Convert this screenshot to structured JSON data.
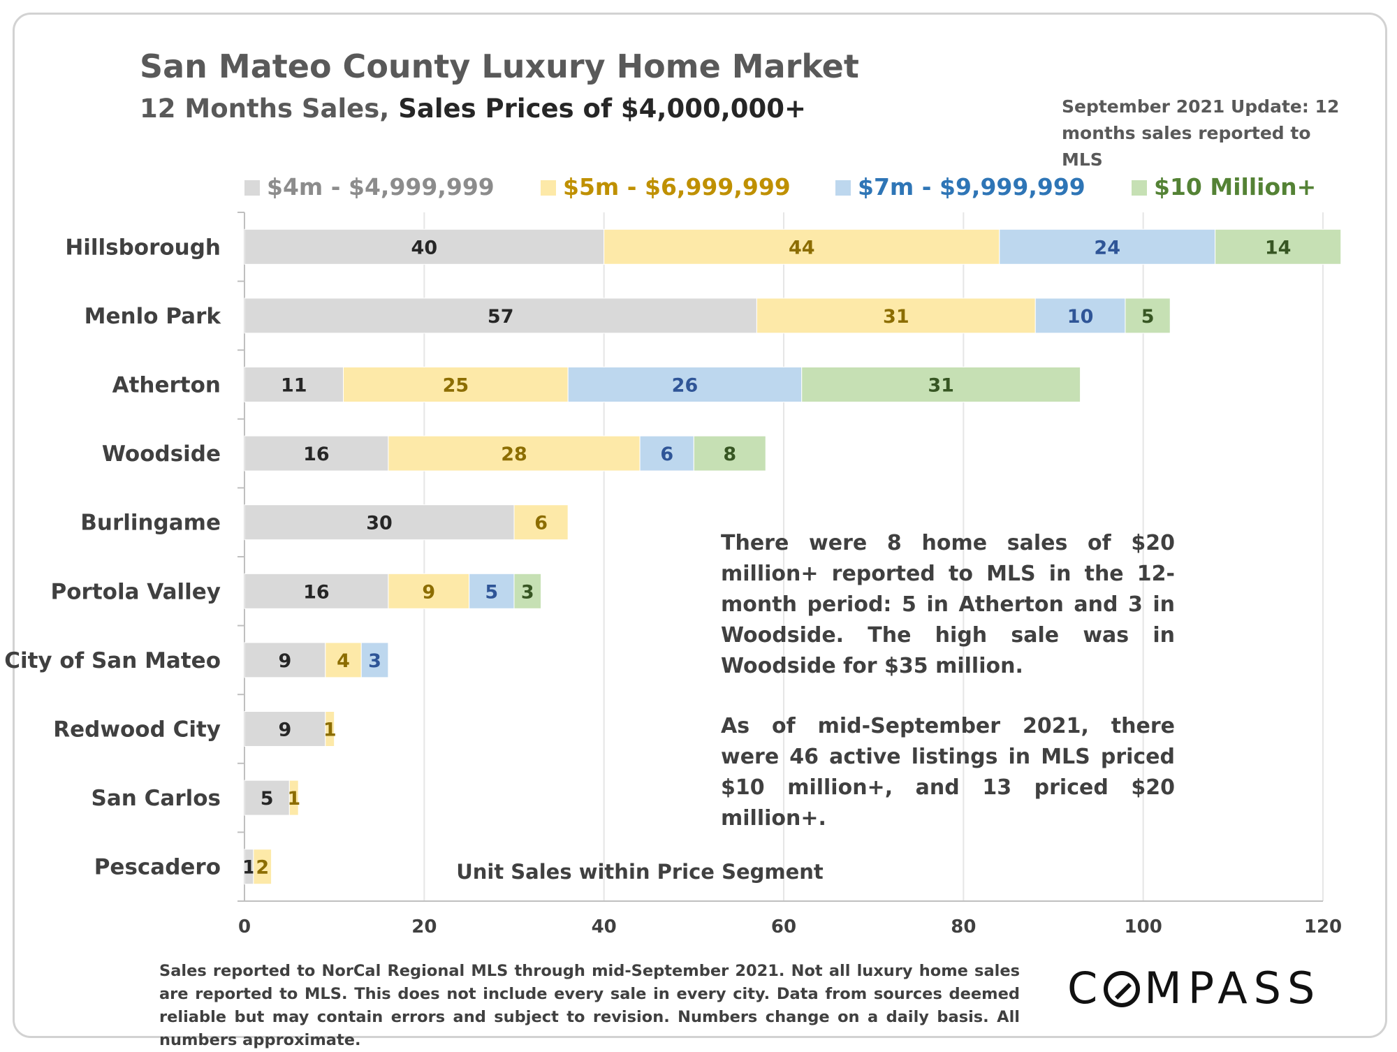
{
  "header": {
    "title": "San Mateo County Luxury Home Market",
    "subtitle_part1": "12 Months Sales, ",
    "subtitle_part2": "Sales Prices of $4,000,000+",
    "update_note": "September 2021 Update: 12 months sales reported to MLS"
  },
  "colors": {
    "seg1": "#d9d9d9",
    "seg2": "#fde9a8",
    "seg3": "#bdd7ee",
    "seg4": "#c6e0b4",
    "label1": "#262626",
    "label2": "#8c6d00",
    "label3": "#2f5597",
    "label4": "#375623",
    "legend1": "#8c8c8c",
    "legend2": "#bf9000",
    "legend3": "#2e75b6",
    "legend4": "#548235"
  },
  "chart_data": {
    "type": "bar",
    "orientation": "horizontal",
    "stacked": true,
    "categories": [
      "Hillsborough",
      "Menlo Park",
      "Atherton",
      "Woodside",
      "Burlingame",
      "Portola Valley",
      "City of San Mateo",
      "Redwood City",
      "San Carlos",
      "Pescadero"
    ],
    "series": [
      {
        "name": "$4m - $4,999,999",
        "values": [
          40,
          57,
          11,
          16,
          30,
          16,
          9,
          9,
          5,
          1
        ]
      },
      {
        "name": "$5m - $6,999,999",
        "values": [
          44,
          31,
          25,
          28,
          6,
          9,
          4,
          1,
          1,
          2
        ]
      },
      {
        "name": "$7m - $9,999,999",
        "values": [
          24,
          10,
          26,
          6,
          0,
          5,
          3,
          0,
          0,
          0
        ]
      },
      {
        "name": "$10 Million+",
        "values": [
          14,
          5,
          31,
          8,
          0,
          3,
          0,
          0,
          0,
          0
        ]
      }
    ],
    "xlim": [
      0,
      120
    ],
    "xticks": [
      0,
      20,
      40,
      60,
      80,
      100,
      120
    ],
    "xlabel": "Unit Sales within Price Segment",
    "grid": true,
    "legend_placement": "top"
  },
  "annotation": {
    "paragraph1": "There were 8 home sales of $20 million+ reported to MLS in the 12-month period: 5 in Atherton and 3 in Woodside. The high sale was in Woodside for $35 million.",
    "paragraph2": "As of mid-September 2021, there were 46 active listings in MLS priced $10 million+, and 13 priced $20 million+."
  },
  "footnote": "Sales reported to NorCal Regional MLS through mid-September 2021. Not all luxury home sales are reported to MLS. This does not include every sale in every city. Data from sources deemed reliable but may contain errors and subject to revision. Numbers change on a daily basis. All numbers approximate.",
  "logo": {
    "first": "C",
    "rest": "MPASS"
  }
}
